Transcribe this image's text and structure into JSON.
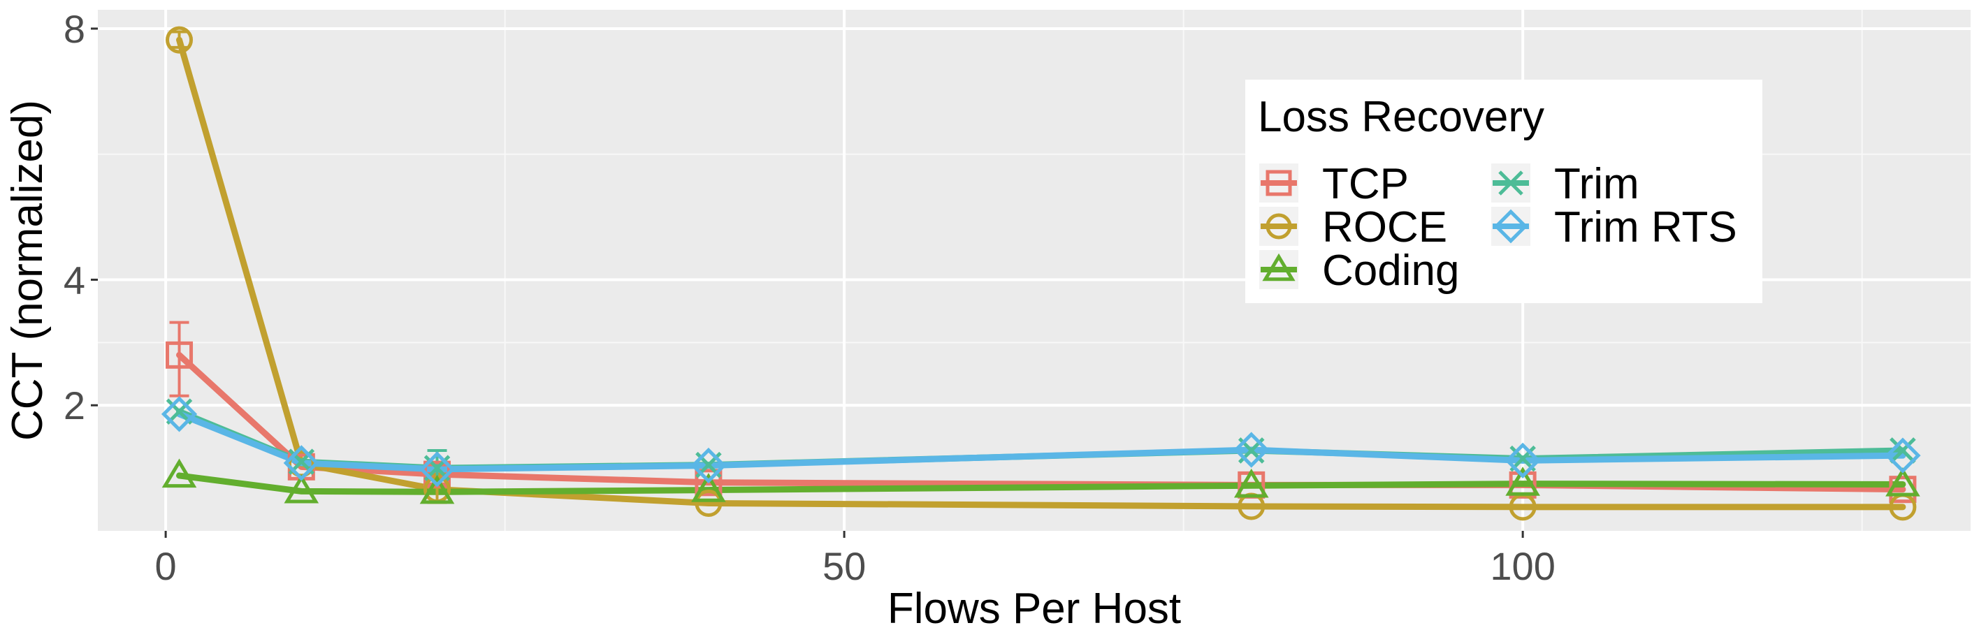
{
  "chart_data": {
    "type": "line",
    "xlabel": "Flows Per Host",
    "ylabel": "CCT (normalized)",
    "xlim": [
      -5,
      133
    ],
    "ylim": [
      0,
      8.3
    ],
    "xticks": [
      0,
      50,
      100
    ],
    "yticks": [
      2,
      4,
      8
    ],
    "grid": true,
    "legend": {
      "title": "Loss Recovery",
      "position": "top-right"
    },
    "x": [
      1,
      10,
      20,
      40,
      80,
      100,
      128
    ],
    "series": [
      {
        "name": "TCP",
        "color": "#E8776B",
        "marker": "square",
        "values": [
          2.8,
          1.02,
          0.9,
          0.77,
          0.73,
          0.73,
          0.66
        ],
        "err_low": [
          2.15,
          null,
          0.75,
          null,
          null,
          null,
          null
        ],
        "err_high": [
          3.32,
          null,
          1.05,
          null,
          null,
          null,
          null
        ]
      },
      {
        "name": "ROCE",
        "color": "#C1A02F",
        "marker": "circle",
        "values": [
          7.82,
          1.07,
          0.66,
          0.44,
          0.39,
          0.38,
          0.38
        ],
        "err_low": [
          7.7,
          null,
          0.45,
          null,
          null,
          null,
          null
        ],
        "err_high": [
          7.95,
          null,
          0.9,
          null,
          null,
          null,
          null
        ]
      },
      {
        "name": "Coding",
        "color": "#62AE2E",
        "marker": "triangle",
        "values": [
          0.88,
          0.63,
          0.62,
          0.65,
          0.72,
          0.75,
          0.74
        ],
        "err_low": [
          null,
          null,
          null,
          null,
          null,
          null,
          null
        ],
        "err_high": [
          null,
          null,
          null,
          null,
          null,
          null,
          null
        ]
      },
      {
        "name": "Trim",
        "color": "#4DBC97",
        "marker": "x",
        "values": [
          1.9,
          1.1,
          1.0,
          1.05,
          1.28,
          1.15,
          1.28
        ],
        "err_low": [
          null,
          null,
          0.82,
          null,
          null,
          null,
          null
        ],
        "err_high": [
          null,
          null,
          1.28,
          null,
          null,
          null,
          null
        ]
      },
      {
        "name": "Trim RTS",
        "color": "#5AB6E6",
        "marker": "diamond",
        "values": [
          1.86,
          1.08,
          0.98,
          1.04,
          1.29,
          1.12,
          1.2
        ],
        "err_low": [
          null,
          null,
          null,
          null,
          null,
          null,
          null
        ],
        "err_high": [
          null,
          null,
          null,
          null,
          null,
          null,
          null
        ]
      }
    ]
  }
}
